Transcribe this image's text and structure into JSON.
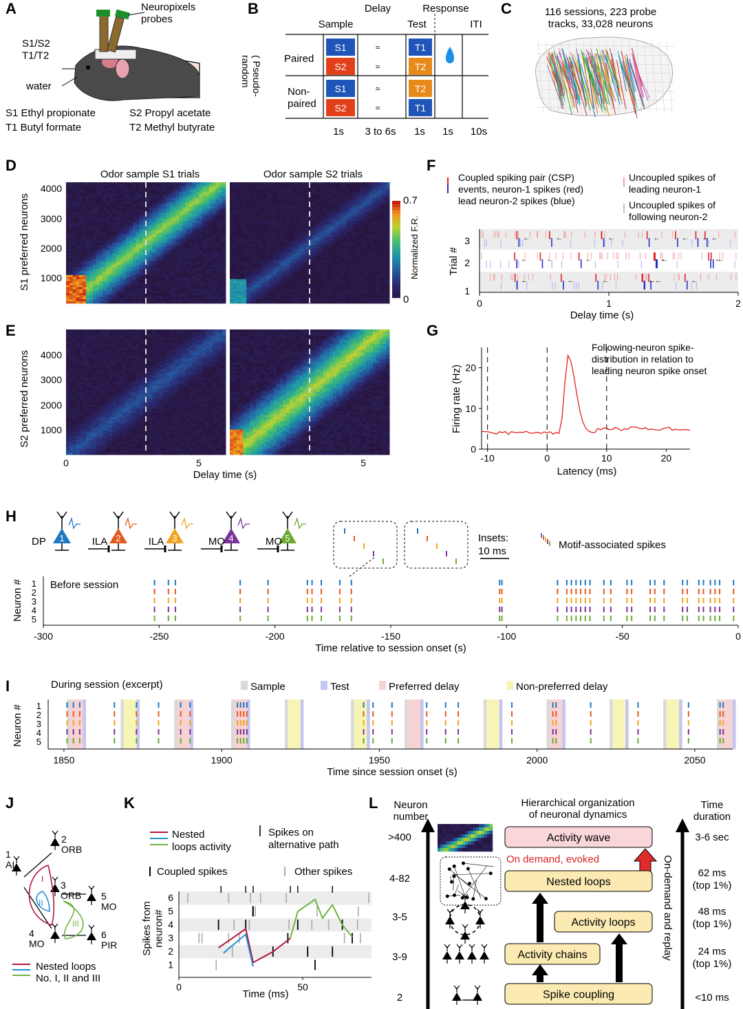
{
  "colors": {
    "neuron1": "#1f77c4",
    "neuron2": "#e4581c",
    "neuron3": "#f0a421",
    "neuron4": "#7a3199",
    "neuron5": "#6aaa2f",
    "sample_bg": "#d9d9d9",
    "test_bg": "#c5c5f2",
    "pref_delay_bg": "#f7d2d2",
    "nonpref_delay_bg": "#f7f5b6",
    "red_spike": "#e02020",
    "blue_spike": "#2030c8",
    "nested_red": "#b0163a",
    "nested_blue": "#1f8fd6",
    "nested_green": "#6db33f",
    "wave_box": "#f8d6d9",
    "loop_box": "#fbeab2"
  },
  "panels": {
    "A": {
      "letter": "A",
      "probes": "Neuropixels\nprobes",
      "odor_ports": "S1/S2\nT1/T2",
      "water": "water",
      "odors": [
        "S1  Ethyl  propionate",
        "T1 Butyl  formate",
        "S2  Propyl  acetate",
        "T2  Methyl  butyrate"
      ]
    },
    "B": {
      "letter": "B",
      "delay": "Delay",
      "response": "Response",
      "sample": "Sample",
      "test": "Test",
      "iti": "ITI",
      "pseudo": "( Pseudo-\nrandom",
      "paired": "Paired",
      "nonpaired": "Non-\npaired",
      "sample_odors": [
        "S1",
        "S2",
        "S1",
        "S2"
      ],
      "test_odors": [
        "T1",
        "T2",
        "T2",
        "T1"
      ],
      "durations": [
        "1s",
        "3 to  6s",
        "1s",
        "1s",
        "10s"
      ]
    },
    "C": {
      "letter": "C",
      "caption": "116  sessions, 223  probe\ntracks, 33,028  neurons"
    },
    "D": {
      "letter": "D",
      "title_left": "Odor  sample  S1 trials",
      "title_right": "Odor  sample  S2 trials",
      "ylabel": "S1 preferred neurons",
      "yticks": [
        "4000",
        "3000",
        "2000",
        "1000"
      ],
      "colorbar_max": "0.7",
      "colorbar_min": "0",
      "colorbar_label": "Normalized F.R."
    },
    "E": {
      "letter": "E",
      "ylabel": "S2 preferred neurons",
      "yticks": [
        "4000",
        "3000",
        "2000",
        "1000"
      ],
      "xticks": [
        "0",
        "5",
        "5"
      ],
      "xlabel": "Delay  time  (s)"
    },
    "F": {
      "letter": "F",
      "legend_csp": "Coupled spiking pair (CSP)\nevents, neuron-1 spikes (red)\nlead neuron-2 spikes (blue)",
      "legend_unc1": "Uncoupled spikes of\nleading  neuron-1",
      "legend_unc2": "Uncoupled spikes of\nfollowing  neuron-2",
      "ylabel": "Trial #",
      "yticks": [
        "3",
        "2",
        "1"
      ],
      "xticks": [
        "0",
        "1",
        "2"
      ],
      "xlabel": "Delay time (s)"
    },
    "G": {
      "letter": "G",
      "annotation": "Following-neuron spike-\ndistribution in relation to\nleading neuron  spike onset",
      "ylabel": "Firing rate (Hz)",
      "yticks": [
        "20",
        "10",
        "0"
      ],
      "xticks": [
        "-10",
        "0",
        "10",
        "20"
      ],
      "xlabel": "Latency (ms)",
      "peak_hz": 23,
      "peak_latency_ms": 3.5,
      "baseline_hz": 4,
      "xlim": [
        -11,
        24
      ],
      "ylim": [
        0,
        25
      ]
    },
    "H": {
      "letter": "H",
      "regions": [
        "DP",
        "ILA",
        "ILA",
        "MO",
        "MO"
      ],
      "insets": "Insets:",
      "insets_scale": "10 ms",
      "motif": "Motif-associated spikes",
      "before": "Before session",
      "ylabel": "Neuron #",
      "neuron_ticks": [
        "1",
        "2",
        "3",
        "4",
        "5"
      ],
      "xticks": [
        "-300",
        "-250",
        "-200",
        "-150",
        "-100",
        "-50",
        "0"
      ],
      "xlabel": "Time relative to session onset (s)",
      "xlim": [
        -300,
        0
      ],
      "motif_times": [
        -252,
        -246,
        -243,
        -215,
        -203,
        -186,
        -184,
        -180,
        -172,
        -167,
        -103,
        -102,
        -78,
        -74,
        -72,
        -70,
        -68,
        -66,
        -64,
        -58,
        -55,
        -48,
        -46,
        -38,
        -36,
        -32,
        -24,
        -22,
        -17,
        -15,
        -12,
        -10,
        -8,
        -2
      ]
    },
    "I": {
      "letter": "I",
      "during": "During session (excerpt)",
      "legend": [
        "Sample",
        "Test",
        "Preferred delay",
        "Non-preferred delay"
      ],
      "ylabel": "Neuron #",
      "neuron_ticks": [
        "1",
        "2",
        "3",
        "4",
        "5"
      ],
      "xticks": [
        "1850",
        "1900",
        "1950",
        "2000",
        "2050"
      ],
      "xlabel": "Time since session onset (s)",
      "xlim": [
        1845,
        2062
      ],
      "trials": [
        {
          "start": 1851,
          "type": "pref"
        },
        {
          "start": 1868,
          "type": "nonpref"
        },
        {
          "start": 1885,
          "type": "pref"
        },
        {
          "start": 1903,
          "type": "pref"
        },
        {
          "start": 1920,
          "type": "nonpref"
        },
        {
          "start": 1941,
          "type": "nonpref"
        },
        {
          "start": 1958,
          "type": "pref"
        },
        {
          "start": 1983,
          "type": "nonpref"
        },
        {
          "start": 2003,
          "type": "pref"
        },
        {
          "start": 2023,
          "type": "nonpref"
        },
        {
          "start": 2040,
          "type": "nonpref"
        },
        {
          "start": 2057,
          "type": "pref"
        }
      ],
      "motif_times": [
        1851,
        1853,
        1855,
        1866,
        1873,
        1880,
        1887,
        1890,
        1905,
        1906,
        1907,
        1908,
        1945,
        1948,
        1954,
        1965,
        1971,
        1975,
        1992,
        2005,
        2006,
        2017,
        2032,
        2048,
        2058,
        2059
      ]
    },
    "J": {
      "letter": "J",
      "nodes": [
        "1\nAI",
        "2\nORB",
        "3\nORB",
        "4\nMO",
        "5\nMO",
        "6\nPIR"
      ],
      "loop_labels": [
        "I",
        "II",
        "III"
      ],
      "legend": [
        "Nested loops",
        "No. I, II and III"
      ]
    },
    "K": {
      "letter": "K",
      "legend_nested": "Nested\nloops activity",
      "legend_alt": "Spikes on\nalternative path",
      "coupled": "Coupled spikes",
      "other": "Other spikes",
      "ylabel": "Spikes from\nneuron#",
      "yticks": [
        "6",
        "5",
        "4",
        "3",
        "2",
        "1"
      ],
      "xticks": [
        "0",
        "50"
      ],
      "xlabel": "Time (ms)"
    },
    "L": {
      "letter": "L",
      "neuron_number": "Neuron\nnumber",
      "title": "Hierarchical organization\nof neuronal dynamics",
      "time_duration": "Time\nduration",
      "levels": [
        {
          "n": ">400",
          "box": "Activity wave",
          "t": "3-6 sec"
        },
        {
          "n": "4-82",
          "box": "Nested loops",
          "t": "62 ms\n(top 1%)"
        },
        {
          "n": "3-5",
          "box": "Activity loops",
          "t": "48 ms\n(top 1%)"
        },
        {
          "n": "3-9",
          "box": "Activity chains",
          "t": "24 ms\n(top 1%)"
        },
        {
          "n": "2",
          "box": "Spike coupling",
          "t": "<10 ms"
        }
      ],
      "on_demand": "On demand, evoked",
      "side": "On-demand and replay"
    }
  }
}
